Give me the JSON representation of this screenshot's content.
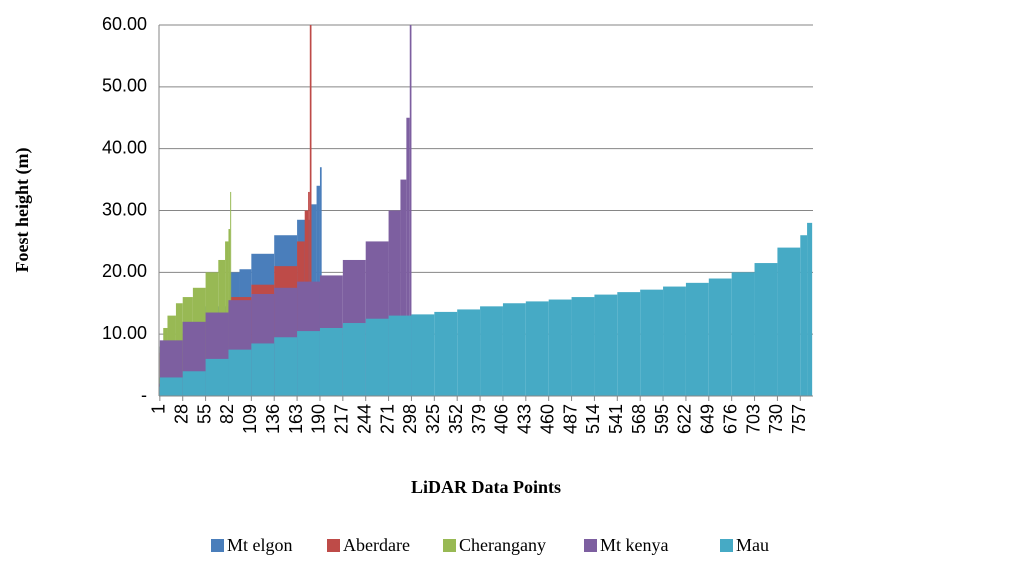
{
  "chart_data": {
    "type": "bar",
    "x_label": "LiDAR Data Points",
    "y_label": "Foest  height (m)",
    "xlim": [
      0,
      772
    ],
    "xticks": [
      1,
      28,
      55,
      82,
      109,
      136,
      163,
      190,
      217,
      244,
      271,
      298,
      325,
      352,
      379,
      406,
      433,
      460,
      487,
      514,
      541,
      568,
      595,
      622,
      649,
      676,
      703,
      730,
      757
    ],
    "ylim": [
      0,
      60
    ],
    "yticks": [
      {
        "value": 0,
        "label": "-"
      },
      {
        "value": 10,
        "label": "10.00"
      },
      {
        "value": 20,
        "label": "20.00"
      },
      {
        "value": 30,
        "label": "30.00"
      },
      {
        "value": 40,
        "label": "40.00"
      },
      {
        "value": 50,
        "label": "50.00"
      },
      {
        "value": 60,
        "label": "60.00"
      }
    ],
    "grid": true,
    "legend": "bottom",
    "series": [
      {
        "name": "Mt elgon",
        "color": "#4a7ebb",
        "x": [
          1,
          28,
          55,
          82,
          95,
          109,
          136,
          163,
          180,
          186,
          190,
          192
        ],
        "values": [
          2,
          8,
          12,
          14.5,
          20,
          20.5,
          23,
          26,
          28.5,
          31,
          34,
          37
        ]
      },
      {
        "name": "Aberdare",
        "color": "#be4b48",
        "x": [
          1,
          28,
          55,
          82,
          109,
          136,
          163,
          172,
          176,
          178,
          180
        ],
        "values": [
          2,
          7,
          10,
          13,
          16,
          18,
          21,
          25,
          30,
          33,
          60
        ]
      },
      {
        "name": "Cherangany",
        "color": "#98b954",
        "x": [
          1,
          5,
          10,
          20,
          28,
          40,
          55,
          70,
          78,
          82,
          84,
          85
        ],
        "values": [
          3,
          8,
          11,
          13,
          15,
          16,
          17.5,
          20,
          22,
          25,
          27,
          33
        ]
      },
      {
        "name": "Mt kenya",
        "color": "#7d5fa0",
        "x": [
          1,
          28,
          55,
          82,
          109,
          136,
          163,
          190,
          217,
          244,
          271,
          285,
          292,
          296,
          298
        ],
        "values": [
          2,
          9,
          12,
          13.5,
          15.5,
          16.5,
          17.5,
          18.5,
          19.5,
          22,
          25,
          30,
          35,
          45,
          60
        ]
      },
      {
        "name": "Mau",
        "color": "#46aac5",
        "x": [
          1,
          28,
          55,
          82,
          109,
          136,
          163,
          190,
          217,
          244,
          271,
          298,
          325,
          352,
          379,
          406,
          433,
          460,
          487,
          514,
          541,
          568,
          595,
          622,
          649,
          676,
          703,
          730,
          757,
          765,
          771
        ],
        "values": [
          1.5,
          3,
          4,
          6,
          7.5,
          8.5,
          9.5,
          10.5,
          11,
          11.8,
          12.5,
          13,
          13.2,
          13.6,
          14,
          14.5,
          15,
          15.3,
          15.6,
          16,
          16.4,
          16.8,
          17.2,
          17.7,
          18.3,
          19,
          20,
          21.5,
          24,
          26,
          28
        ]
      }
    ]
  }
}
